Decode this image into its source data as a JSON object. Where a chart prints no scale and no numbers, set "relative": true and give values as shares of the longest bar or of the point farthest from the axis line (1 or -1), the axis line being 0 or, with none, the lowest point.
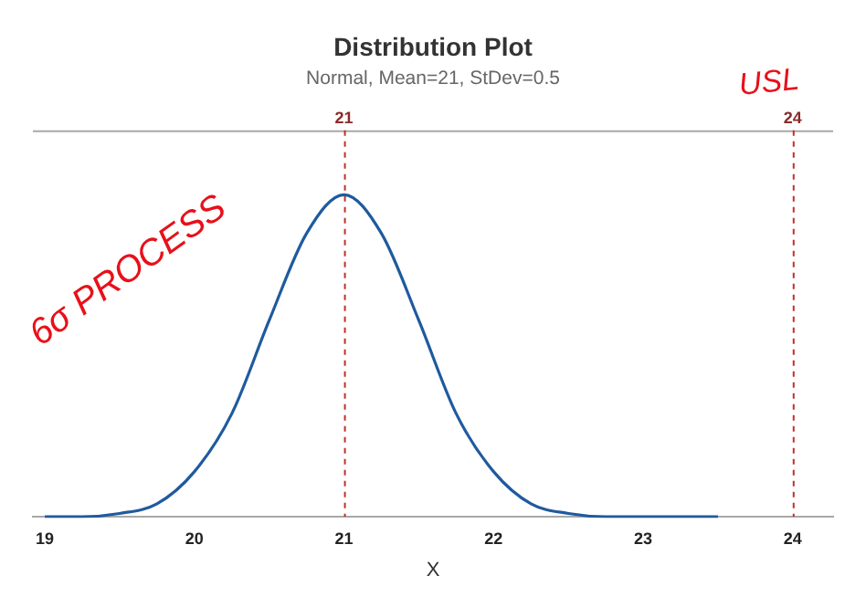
{
  "chart_data": {
    "type": "line",
    "title": "Distribution Plot",
    "subtitle": "Normal, Mean=21, StDev=0.5",
    "xlabel": "X",
    "relative": true,
    "x": [
      19,
      19.25,
      19.5,
      19.75,
      20,
      20.25,
      20.5,
      20.75,
      21,
      21.25,
      21.5,
      21.75,
      22,
      22.25,
      22.5,
      22.75,
      23,
      23.25,
      23.5
    ],
    "series": [
      {
        "color": "#1f5a9e",
        "values": [
          0,
          0,
          0.01,
          0.04,
          0.14,
          0.32,
          0.61,
          0.88,
          1,
          0.88,
          0.61,
          0.32,
          0.14,
          0.04,
          0.01,
          0,
          0,
          0,
          0
        ]
      }
    ],
    "xlim": [
      18.92,
      24.27
    ],
    "xticks": [
      19,
      20,
      21,
      22,
      23,
      24
    ],
    "ref_lines": [
      {
        "axis": "x",
        "value": 21,
        "label": "21",
        "color": "#c0302a",
        "line_style": "dashed"
      },
      {
        "axis": "x",
        "value": 24,
        "label": "24",
        "color": "#c0302a",
        "line_style": "dashed"
      }
    ],
    "annotations": [
      "6σ PROCESS",
      "USL"
    ],
    "grid": false,
    "legend": false,
    "marker": "none",
    "line_style": "solid"
  }
}
